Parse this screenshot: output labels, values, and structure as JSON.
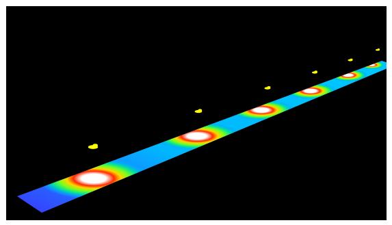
{
  "viewer": {
    "background": "#000000",
    "frame_color": "#ffffff",
    "scene": "heat-strip",
    "gradient_stops": [
      "#ffffff",
      "#ffffff",
      "#ff2a00",
      "#ffd400",
      "#7dff1a",
      "#00e0a0",
      "#00aaff",
      "#2a6bff"
    ],
    "strip_edge_colors": [
      "#3a3aff",
      "#00b7ff"
    ],
    "hotspot_count": 6,
    "marker_count": 6,
    "marker_color": "#ffff00"
  }
}
